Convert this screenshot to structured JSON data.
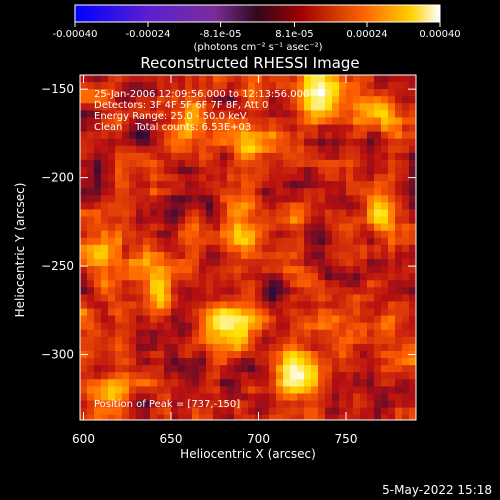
{
  "colorbar": {
    "tick_labels": [
      "-0.00040",
      "-0.00024",
      "-8.1e-05",
      "8.1e-05",
      "0.00024",
      "0.00040"
    ],
    "tick_values": [
      -0.0004,
      -0.00024,
      -8.1e-05,
      8.1e-05,
      0.00024,
      0.0004
    ],
    "range": [
      -0.0004,
      0.0004
    ],
    "units": "(photons cm⁻² s⁻¹ asec⁻²)"
  },
  "chart_data": {
    "type": "heatmap",
    "title": "Reconstructed RHESSI Image",
    "xlabel": "Heliocentric X (arcsec)",
    "ylabel": "Heliocentric Y (arcsec)",
    "xlim": [
      598,
      790
    ],
    "ylim": [
      -337,
      -142
    ],
    "x_ticks": [
      600,
      650,
      700,
      750
    ],
    "x_tick_labels": [
      "600",
      "650",
      "700",
      "750"
    ],
    "y_ticks": [
      -150,
      -200,
      -250,
      -300
    ],
    "y_tick_labels": [
      "−150",
      "−200",
      "−250",
      "−300"
    ],
    "colormap": [
      "#0000ff",
      "#6a2dbf",
      "#2a0a3a",
      "#b81010",
      "#ff6000",
      "#ffe000",
      "#ffffff"
    ],
    "bright_sources": [
      {
        "x": 737,
        "y": -150,
        "intensity": 0.0004
      },
      {
        "x": 721,
        "y": -312,
        "intensity": 0.00036
      },
      {
        "x": 683,
        "y": -282,
        "intensity": 0.00033
      },
      {
        "x": 774,
        "y": -218,
        "intensity": 0.00028
      },
      {
        "x": 692,
        "y": -232,
        "intensity": 0.00024
      },
      {
        "x": 641,
        "y": -258,
        "intensity": 0.00022
      },
      {
        "x": 617,
        "y": -318,
        "intensity": 0.0002
      },
      {
        "x": 766,
        "y": -165,
        "intensity": 0.00022
      },
      {
        "x": 700,
        "y": -183,
        "intensity": 0.00018
      },
      {
        "x": 660,
        "y": -170,
        "intensity": 0.00016
      },
      {
        "x": 610,
        "y": -245,
        "intensity": 0.00018
      },
      {
        "x": 745,
        "y": -290,
        "intensity": 0.00016
      }
    ],
    "annotations": [
      "25-Jan-2006 12:09:56.000 to 12:13:56.000",
      "Detectors: 3F 4F 5F 6F 7F 8F, Att 0",
      "Energy Range: 25.0 - 50.0 keV",
      "Clean    Total counts: 6.53E+03"
    ],
    "peak_label": "Position of Peak = [737,-150]"
  },
  "footer": {
    "date": "5-May-2022 15:18"
  }
}
